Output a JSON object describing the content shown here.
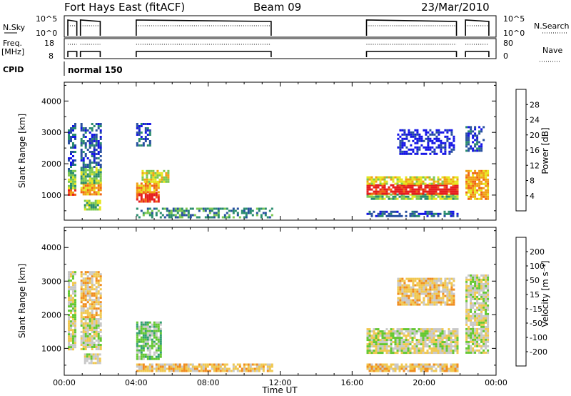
{
  "header": {
    "title": "Fort Hays East (fitACF)",
    "beam": "Beam 09",
    "date": "23/Mar/2010"
  },
  "aux_panels": {
    "nsky_label": "N.Sky",
    "nsky_ticks": [
      "10^5",
      "10^0"
    ],
    "nsearch_label": "N.Search",
    "nsearch_ticks": [
      "10^5",
      "10^0"
    ],
    "freq_label_line1": "Freq.",
    "freq_label_line2": "[MHz]",
    "freq_ticks": [
      "18",
      "8"
    ],
    "nave_label": "Nave",
    "nave_ticks": [
      "80",
      "0"
    ],
    "cpid_label": "CPID",
    "cpid_value": "normal 150"
  },
  "chart_data": [
    {
      "type": "heatmap",
      "panel": "power",
      "ylabel": "Slant Range [km]",
      "ytick_labels": [
        "1000",
        "2000",
        "3000",
        "4000"
      ],
      "ylim": [
        200,
        4600
      ],
      "xlim": [
        0,
        24
      ],
      "colorbar": {
        "label": "Power [dB]",
        "tick_labels": [
          "4",
          "8",
          "12",
          "16",
          "20",
          "24",
          "28"
        ],
        "colors": [
          "#1414e6",
          "#2850a0",
          "#2a8c6e",
          "#7cc850",
          "#e6e61e",
          "#f0a014",
          "#f06414",
          "#e61e1e"
        ]
      },
      "regions": [
        {
          "t0": 0.2,
          "t1": 0.6,
          "r0": 1000,
          "r1": 1250,
          "level": 6
        },
        {
          "t0": 0.2,
          "t1": 0.6,
          "r0": 1250,
          "r1": 1800,
          "level": 3
        },
        {
          "t0": 0.2,
          "t1": 0.6,
          "r0": 1800,
          "r1": 3300,
          "level": 1
        },
        {
          "t0": 0.9,
          "t1": 2.0,
          "r0": 1000,
          "r1": 1400,
          "level": 5
        },
        {
          "t0": 0.9,
          "t1": 2.0,
          "r0": 1400,
          "r1": 1900,
          "level": 3
        },
        {
          "t0": 0.9,
          "t1": 2.0,
          "r0": 1900,
          "r1": 3300,
          "level": 1
        },
        {
          "t0": 1.1,
          "t1": 2.0,
          "r0": 550,
          "r1": 850,
          "level": 3
        },
        {
          "t0": 4.0,
          "t1": 5.2,
          "r0": 800,
          "r1": 1100,
          "level": 7
        },
        {
          "t0": 4.0,
          "t1": 5.3,
          "r0": 1100,
          "r1": 1400,
          "level": 5
        },
        {
          "t0": 4.3,
          "t1": 5.8,
          "r0": 1400,
          "r1": 1800,
          "level": 4
        },
        {
          "t0": 4.0,
          "t1": 4.8,
          "r0": 2600,
          "r1": 3300,
          "level": 1
        },
        {
          "t0": 4.0,
          "t1": 11.5,
          "r0": 300,
          "r1": 600,
          "level": 2
        },
        {
          "t0": 16.8,
          "t1": 21.8,
          "r0": 850,
          "r1": 1050,
          "level": 3
        },
        {
          "t0": 16.8,
          "t1": 21.8,
          "r0": 1050,
          "r1": 1350,
          "level": 7
        },
        {
          "t0": 16.8,
          "t1": 21.8,
          "r0": 1350,
          "r1": 1600,
          "level": 4
        },
        {
          "t0": 16.8,
          "t1": 21.8,
          "r0": 300,
          "r1": 500,
          "level": 1
        },
        {
          "t0": 18.5,
          "t1": 21.6,
          "r0": 2300,
          "r1": 3100,
          "level": 0
        },
        {
          "t0": 22.3,
          "t1": 23.5,
          "r0": 900,
          "r1": 1800,
          "level": 5
        },
        {
          "t0": 22.3,
          "t1": 23.3,
          "r0": 2400,
          "r1": 3200,
          "level": 1
        }
      ]
    },
    {
      "type": "heatmap",
      "panel": "velocity",
      "ylabel": "Slant Range [km]",
      "ytick_labels": [
        "1000",
        "2000",
        "3000",
        "4000"
      ],
      "ylim": [
        200,
        4600
      ],
      "xlim": [
        0,
        24
      ],
      "xtick_labels": [
        "00:00",
        "04:00",
        "08:00",
        "12:00",
        "16:00",
        "20:00",
        "00:00"
      ],
      "xlabel": "Time UT",
      "colorbar": {
        "label": "Velocity [m s⁻¹]",
        "tick_labels": [
          "-200",
          "-100",
          "-50",
          "-15",
          "15",
          "50",
          "100",
          "200"
        ],
        "colors": [
          "#e61414",
          "#f05014",
          "#f08c1e",
          "#f0c850",
          "#c8c8c8",
          "#64c832",
          "#32a06e",
          "#2850a0",
          "#1414c8"
        ]
      },
      "regions": [
        {
          "t0": 0.2,
          "t1": 0.6,
          "r0": 1000,
          "r1": 3300,
          "level": 4
        },
        {
          "t0": 0.9,
          "t1": 2.0,
          "r0": 1000,
          "r1": 1900,
          "level": 4
        },
        {
          "t0": 0.9,
          "t1": 2.0,
          "r0": 1900,
          "r1": 3300,
          "level": 3
        },
        {
          "t0": 1.1,
          "t1": 2.0,
          "r0": 550,
          "r1": 850,
          "level": 4
        },
        {
          "t0": 4.0,
          "t1": 5.4,
          "r0": 700,
          "r1": 1800,
          "level": 5
        },
        {
          "t0": 4.0,
          "t1": 11.5,
          "r0": 300,
          "r1": 550,
          "level": 3
        },
        {
          "t0": 16.8,
          "t1": 21.8,
          "r0": 850,
          "r1": 1600,
          "level": 4
        },
        {
          "t0": 16.8,
          "t1": 21.8,
          "r0": 300,
          "r1": 550,
          "level": 3
        },
        {
          "t0": 18.5,
          "t1": 21.6,
          "r0": 2300,
          "r1": 3100,
          "level": 3
        },
        {
          "t0": 22.3,
          "t1": 23.5,
          "r0": 900,
          "r1": 3200,
          "level": 4
        }
      ]
    }
  ],
  "time_axis": {
    "xtick_labels": [
      "00:00",
      "04:00",
      "08:00",
      "12:00",
      "16:00",
      "20:00",
      "00:00"
    ],
    "xlabel": "Time UT"
  }
}
